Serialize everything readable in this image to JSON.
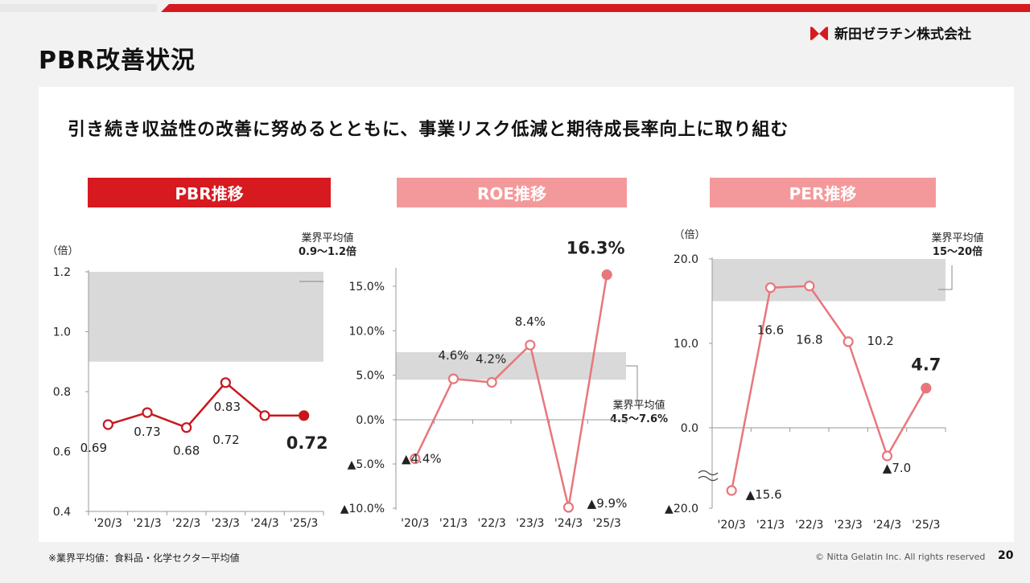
{
  "page": {
    "title": "PBR改善状況",
    "subtitle": "引き続き収益性の改善に努めるとともに、事業リスク低減と期待成長率向上に取り組む",
    "logo_text": "新田ゼラチン株式会社",
    "footnote": "※業界平均値：食料品・化学セクター平均値",
    "copyright": "© Nitta Gelatin Inc. All rights reserved",
    "page_number": "20"
  },
  "colors": {
    "accent": "#d71920",
    "pink_header": "#f4999b",
    "pbr_line": "#c8161d",
    "roe_per_line": "#e8777b",
    "band": "#d9d9d9"
  },
  "chart_data": [
    {
      "id": "pbr",
      "type": "line",
      "title": "PBR推移",
      "unit_label": "（倍）",
      "categories": [
        "'20/3",
        "'21/3",
        "'22/3",
        "'23/3",
        "'24/3",
        "'25/3"
      ],
      "values": [
        0.69,
        0.73,
        0.68,
        0.83,
        0.72,
        0.72
      ],
      "point_labels": [
        "0.69",
        "0.73",
        "0.68",
        "0.83",
        "0.72",
        "0.72"
      ],
      "ylim": [
        0.4,
        1.2
      ],
      "yticks": [
        0.4,
        0.6,
        0.8,
        1.0,
        1.2
      ],
      "ytick_labels": [
        "0.4",
        "0.6",
        "0.8",
        "1.0",
        "1.2"
      ],
      "band": [
        0.9,
        1.2
      ],
      "band_label": "業界平均値",
      "band_value_label": "0.9～1.2倍"
    },
    {
      "id": "roe",
      "type": "line",
      "title": "ROE推移",
      "categories": [
        "'20/3",
        "'21/3",
        "'22/3",
        "'23/3",
        "'24/3",
        "'25/3"
      ],
      "values": [
        -4.4,
        4.6,
        4.2,
        8.4,
        -9.9,
        16.3
      ],
      "point_labels": [
        "▲4.4%",
        "4.6%",
        "4.2%",
        "8.4%",
        "▲9.9%",
        "16.3%"
      ],
      "ylim": [
        -10,
        17
      ],
      "yticks": [
        -10,
        -5,
        0,
        5,
        10,
        15
      ],
      "ytick_labels": [
        "▲10.0%",
        "▲5.0%",
        "0.0%",
        "5.0%",
        "10.0%",
        "15.0%"
      ],
      "band": [
        4.5,
        7.6
      ],
      "band_label": "業界平均値",
      "band_value_label": "4.5～7.6%"
    },
    {
      "id": "per",
      "type": "line",
      "title": "PER推移",
      "unit_label": "（倍）",
      "categories": [
        "'20/3",
        "'21/3",
        "'22/3",
        "'23/3",
        "'24/3",
        "'25/3"
      ],
      "values": [
        -15.6,
        16.6,
        16.8,
        10.2,
        -7.0,
        4.7
      ],
      "point_labels": [
        "▲15.6",
        "16.6",
        "16.8",
        "10.2",
        "▲7.0",
        "4.7"
      ],
      "ylim": [
        -20,
        20
      ],
      "yticks": [
        -20,
        0,
        10,
        20
      ],
      "ytick_labels": [
        "▲20.0",
        "0.0",
        "10.0",
        "20.0"
      ],
      "axis_break": true,
      "band": [
        15,
        20
      ],
      "band_label": "業界平均値",
      "band_value_label": "15～20倍"
    }
  ]
}
